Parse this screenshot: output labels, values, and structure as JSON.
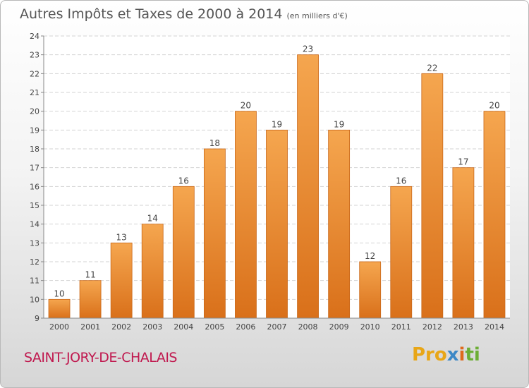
{
  "title": "Autres Impôts et Taxes de 2000 à 2014",
  "unit_note": "(en milliers d'€)",
  "location": "SAINT-JORY-DE-CHALAIS",
  "brand": {
    "p1": "Pro",
    "p2": "x",
    "p3": "i",
    "p4": "ti"
  },
  "colors": {
    "bar_light": "#f5a64f",
    "bar_dark": "#d9701a",
    "bar_edge": "#c9681a",
    "city": "#c0194f"
  },
  "chart_data": {
    "type": "bar",
    "title": "Autres Impôts et Taxes de 2000 à 2014",
    "categories": [
      "2000",
      "2001",
      "2002",
      "2003",
      "2004",
      "2005",
      "2006",
      "2007",
      "2008",
      "2009",
      "2010",
      "2011",
      "2012",
      "2013",
      "2014"
    ],
    "values": [
      10,
      11,
      13,
      14,
      16,
      18,
      20,
      19,
      23,
      19,
      12,
      16,
      22,
      17,
      20
    ],
    "ylim": [
      9,
      24
    ],
    "yticks": [
      9,
      10,
      11,
      12,
      13,
      14,
      15,
      16,
      17,
      18,
      19,
      20,
      21,
      22,
      23,
      24
    ],
    "grid": true,
    "xlabel": "",
    "ylabel": ""
  }
}
